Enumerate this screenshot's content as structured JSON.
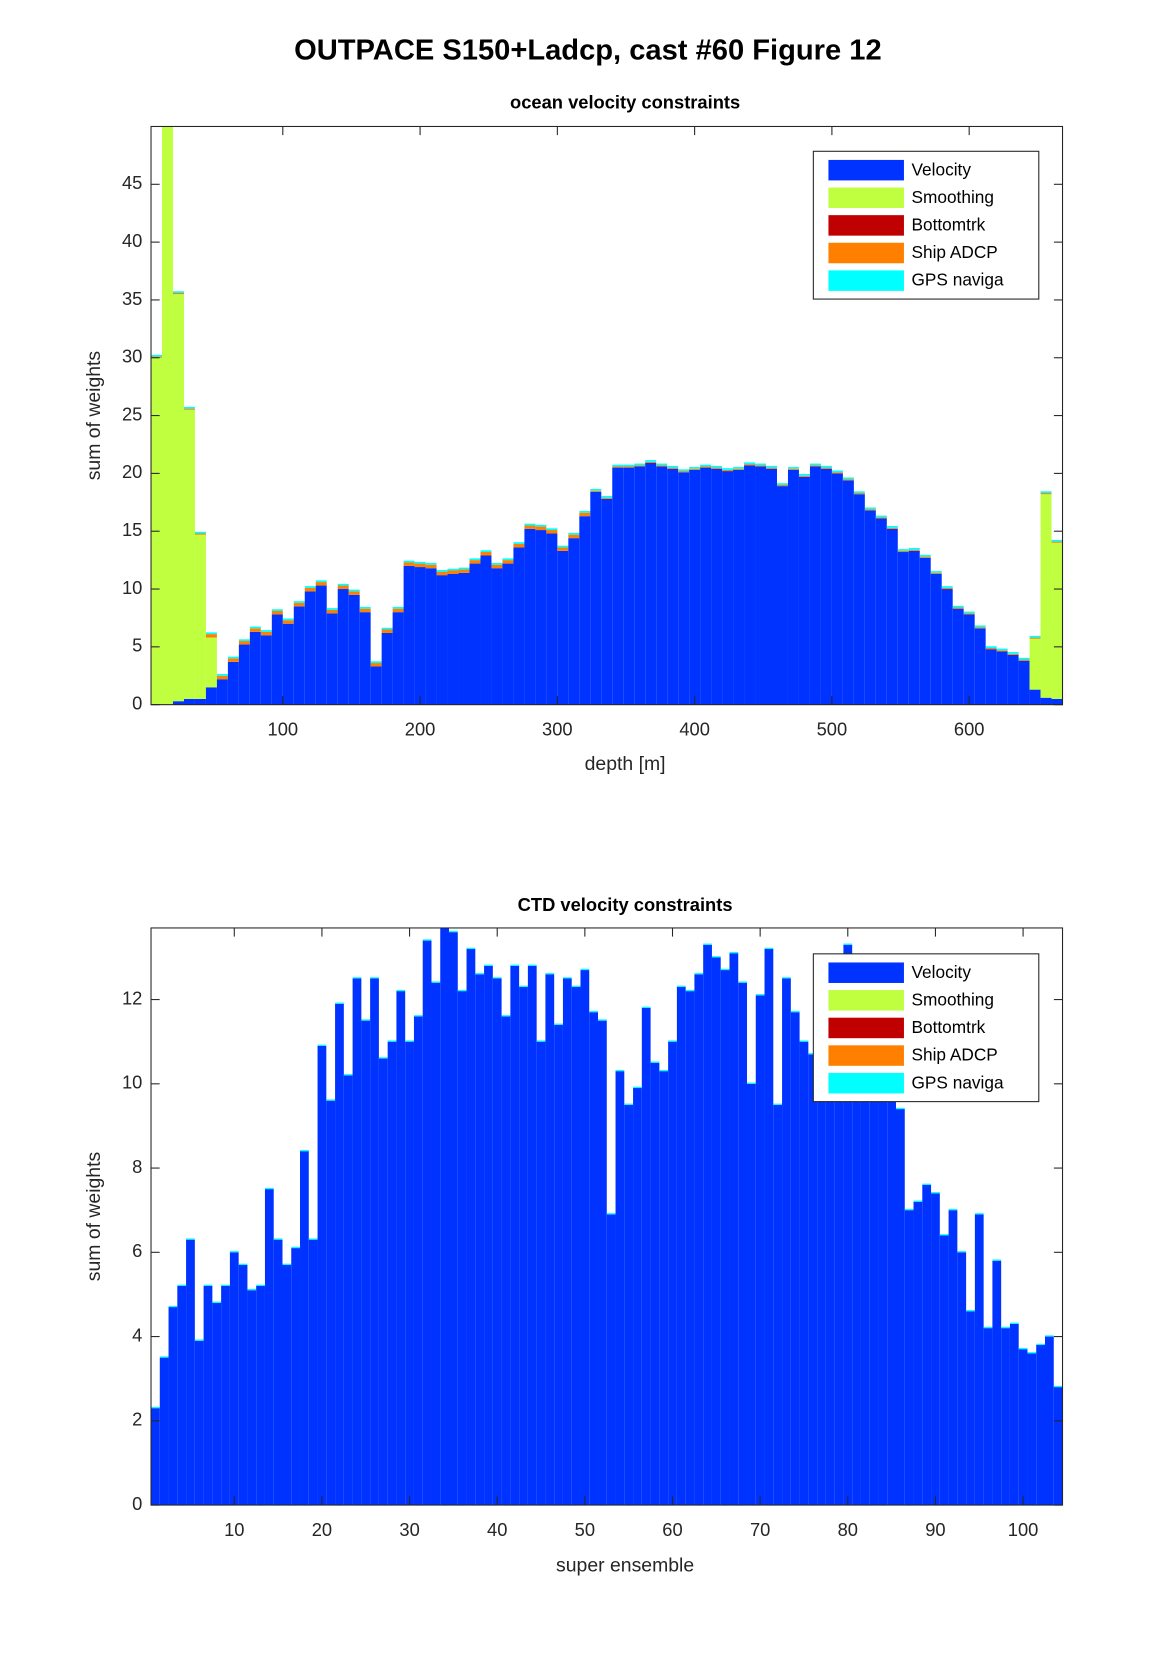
{
  "title": "OUTPACE S150+Ladcp, cast #60  Figure 12",
  "chart_data": [
    {
      "type": "bar",
      "stacked": true,
      "title": "ocean velocity constraints",
      "xlabel": "depth [m]",
      "ylabel": "sum of weights",
      "x": [
        8,
        16,
        24,
        32,
        40,
        48,
        56,
        64,
        72,
        80,
        88,
        96,
        104,
        112,
        120,
        128,
        136,
        144,
        152,
        160,
        168,
        176,
        184,
        192,
        200,
        208,
        216,
        224,
        232,
        240,
        248,
        256,
        264,
        272,
        280,
        288,
        296,
        304,
        312,
        320,
        328,
        336,
        344,
        352,
        360,
        368,
        376,
        384,
        392,
        400,
        408,
        416,
        424,
        432,
        440,
        448,
        456,
        464,
        472,
        480,
        488,
        496,
        504,
        512,
        520,
        528,
        536,
        544,
        552,
        560,
        568,
        576,
        584,
        592,
        600,
        608,
        616,
        624,
        632,
        640,
        648,
        656,
        664
      ],
      "series": [
        {
          "name": "Velocity",
          "color": "#0033ff",
          "values": [
            0,
            0,
            0.3,
            0.5,
            0.5,
            1.5,
            2.2,
            3.7,
            5.2,
            6.3,
            6.0,
            7.8,
            7.0,
            8.5,
            9.8,
            10.3,
            7.9,
            10.0,
            9.5,
            8.0,
            3.3,
            6.2,
            8.0,
            12.0,
            11.9,
            11.8,
            11.2,
            11.3,
            11.4,
            12.2,
            12.9,
            11.8,
            12.2,
            13.6,
            15.2,
            15.1,
            14.8,
            13.3,
            14.4,
            16.3,
            18.4,
            17.8,
            20.5,
            20.5,
            20.6,
            20.9,
            20.6,
            20.4,
            20.1,
            20.3,
            20.5,
            20.4,
            20.2,
            20.3,
            20.7,
            20.6,
            20.4,
            18.9,
            20.3,
            19.7,
            20.6,
            20.4,
            20.0,
            19.4,
            18.2,
            16.8,
            16.1,
            15.2,
            13.2,
            13.3,
            12.7,
            11.3,
            10.0,
            8.3,
            7.8,
            6.6,
            4.8,
            4.6,
            4.3,
            3.8,
            1.3,
            0.6,
            0.5
          ]
        },
        {
          "name": "Smoothing",
          "color": "#bfff40",
          "values": [
            30,
            50,
            35.2,
            25,
            14.2,
            4.3,
            0,
            0,
            0,
            0,
            0,
            0,
            0,
            0,
            0,
            0,
            0,
            0,
            0,
            0,
            0,
            0,
            0,
            0,
            0,
            0,
            0,
            0,
            0,
            0,
            0,
            0,
            0,
            0,
            0,
            0,
            0,
            0,
            0,
            0,
            0,
            0,
            0,
            0,
            0,
            0,
            0,
            0,
            0,
            0,
            0,
            0,
            0,
            0,
            0,
            0,
            0,
            0,
            0,
            0,
            0,
            0,
            0,
            0,
            0,
            0,
            0,
            0,
            0,
            0,
            0,
            0,
            0,
            0,
            0,
            0,
            0,
            0,
            0,
            0,
            4.4,
            17.6,
            13.5
          ]
        },
        {
          "name": "Bottomtrk",
          "color": "#c00000",
          "values": [
            0,
            0,
            0,
            0,
            0,
            0,
            0,
            0,
            0,
            0,
            0,
            0,
            0,
            0,
            0,
            0,
            0,
            0,
            0,
            0,
            0,
            0,
            0,
            0,
            0,
            0,
            0,
            0,
            0,
            0,
            0,
            0,
            0,
            0,
            0,
            0,
            0,
            0,
            0,
            0,
            0,
            0,
            0,
            0,
            0,
            0,
            0,
            0,
            0,
            0,
            0,
            0,
            0,
            0,
            0,
            0,
            0,
            0,
            0,
            0,
            0,
            0,
            0,
            0,
            0,
            0,
            0,
            0,
            0,
            0,
            0,
            0,
            0,
            0,
            0,
            0,
            0,
            0,
            0,
            0,
            0,
            0,
            0
          ]
        },
        {
          "name": "Ship ADCP",
          "color": "#ff8000",
          "values": [
            0.1,
            0.1,
            0.1,
            0.1,
            0.1,
            0.3,
            0.3,
            0.3,
            0.3,
            0.3,
            0.3,
            0.3,
            0.3,
            0.3,
            0.3,
            0.3,
            0.3,
            0.3,
            0.3,
            0.3,
            0.3,
            0.3,
            0.3,
            0.3,
            0.3,
            0.3,
            0.3,
            0.3,
            0.3,
            0.3,
            0.3,
            0.3,
            0.3,
            0.3,
            0.3,
            0.3,
            0.3,
            0.3,
            0.3,
            0.3,
            0.1,
            0.1,
            0.1,
            0.1,
            0.1,
            0.1,
            0.1,
            0.1,
            0.1,
            0.1,
            0.1,
            0.1,
            0.1,
            0.1,
            0.1,
            0.1,
            0.1,
            0.1,
            0.1,
            0.1,
            0.1,
            0.1,
            0.1,
            0.1,
            0.1,
            0.1,
            0.1,
            0.1,
            0.1,
            0.1,
            0.1,
            0.1,
            0.1,
            0.1,
            0.1,
            0.1,
            0.1,
            0.1,
            0.1,
            0.1,
            0.1,
            0.1,
            0.1
          ]
        },
        {
          "name": "GPS naviga",
          "color": "#00ffff",
          "values": [
            0.15,
            0.15,
            0.15,
            0.15,
            0.15,
            0.15,
            0.15,
            0.15,
            0.15,
            0.15,
            0.15,
            0.15,
            0.15,
            0.15,
            0.15,
            0.15,
            0.15,
            0.15,
            0.15,
            0.15,
            0.15,
            0.15,
            0.15,
            0.15,
            0.15,
            0.15,
            0.15,
            0.15,
            0.15,
            0.15,
            0.15,
            0.15,
            0.15,
            0.15,
            0.15,
            0.15,
            0.15,
            0.15,
            0.15,
            0.15,
            0.15,
            0.15,
            0.15,
            0.15,
            0.15,
            0.15,
            0.15,
            0.15,
            0.15,
            0.15,
            0.15,
            0.15,
            0.15,
            0.15,
            0.15,
            0.15,
            0.15,
            0.15,
            0.15,
            0.15,
            0.15,
            0.15,
            0.15,
            0.15,
            0.15,
            0.15,
            0.15,
            0.15,
            0.15,
            0.15,
            0.15,
            0.15,
            0.15,
            0.15,
            0.15,
            0.15,
            0.15,
            0.15,
            0.15,
            0.15,
            0.15,
            0.15,
            0.15
          ]
        }
      ],
      "xlim": [
        4,
        668
      ],
      "ylim": [
        0,
        50
      ],
      "xticks": [
        100,
        200,
        300,
        400,
        500,
        600
      ],
      "yticks": [
        0,
        5,
        10,
        15,
        20,
        25,
        30,
        35,
        40,
        45
      ],
      "legend": "upper right"
    },
    {
      "type": "bar",
      "stacked": true,
      "title": "CTD velocity constraints",
      "xlabel": "super ensemble",
      "ylabel": "sum of weights",
      "x": [
        1,
        2,
        3,
        4,
        5,
        6,
        7,
        8,
        9,
        10,
        11,
        12,
        13,
        14,
        15,
        16,
        17,
        18,
        19,
        20,
        21,
        22,
        23,
        24,
        25,
        26,
        27,
        28,
        29,
        30,
        31,
        32,
        33,
        34,
        35,
        36,
        37,
        38,
        39,
        40,
        41,
        42,
        43,
        44,
        45,
        46,
        47,
        48,
        49,
        50,
        51,
        52,
        53,
        54,
        55,
        56,
        57,
        58,
        59,
        60,
        61,
        62,
        63,
        64,
        65,
        66,
        67,
        68,
        69,
        70,
        71,
        72,
        73,
        74,
        75,
        76,
        77,
        78,
        79,
        80,
        81,
        82,
        83,
        84,
        85,
        86,
        87,
        88,
        89,
        90,
        91,
        92,
        93,
        94,
        95,
        96,
        97,
        98,
        99,
        100,
        101,
        102,
        103,
        104
      ],
      "series": [
        {
          "name": "Velocity",
          "color": "#0033ff",
          "values": [
            2.3,
            3.5,
            4.7,
            5.2,
            6.3,
            3.9,
            5.2,
            4.8,
            5.2,
            6.0,
            5.7,
            5.1,
            5.2,
            7.5,
            6.3,
            5.7,
            6.1,
            8.4,
            6.3,
            10.9,
            9.6,
            11.9,
            10.2,
            12.5,
            11.5,
            12.5,
            10.6,
            11.0,
            12.2,
            11.0,
            11.6,
            13.4,
            12.4,
            13.7,
            13.6,
            12.2,
            13.2,
            12.6,
            12.8,
            12.5,
            11.6,
            12.8,
            12.3,
            12.8,
            11.0,
            12.6,
            11.4,
            12.5,
            12.3,
            12.7,
            11.7,
            11.5,
            6.9,
            10.3,
            9.5,
            9.9,
            11.8,
            10.5,
            10.3,
            11.0,
            12.3,
            12.2,
            12.6,
            13.3,
            13.0,
            12.7,
            13.1,
            12.4,
            10.0,
            12.1,
            13.2,
            9.5,
            12.5,
            11.7,
            11.0,
            10.7,
            12.4,
            10.6,
            12.1,
            13.3,
            12.5,
            11.0,
            10.0,
            9.7,
            10.2,
            9.4,
            7.0,
            7.2,
            7.6,
            7.4,
            6.4,
            7.0,
            6.0,
            4.6,
            6.9,
            4.2,
            5.8,
            4.2,
            4.3,
            3.7,
            3.6,
            3.8,
            4.0,
            2.8
          ]
        },
        {
          "name": "Smoothing",
          "color": "#bfff40",
          "values": [
            0,
            0,
            0,
            0,
            0,
            0,
            0,
            0,
            0,
            0,
            0,
            0,
            0,
            0,
            0,
            0,
            0,
            0,
            0,
            0,
            0,
            0,
            0,
            0,
            0,
            0,
            0,
            0,
            0,
            0,
            0,
            0,
            0,
            0,
            0,
            0,
            0,
            0,
            0,
            0,
            0,
            0,
            0,
            0,
            0,
            0,
            0,
            0,
            0,
            0,
            0,
            0,
            0,
            0,
            0,
            0,
            0,
            0,
            0,
            0,
            0,
            0,
            0,
            0,
            0,
            0,
            0,
            0,
            0,
            0,
            0,
            0,
            0,
            0,
            0,
            0,
            0,
            0,
            0,
            0,
            0,
            0,
            0,
            0,
            0,
            0,
            0,
            0,
            0,
            0,
            0,
            0,
            0,
            0,
            0,
            0,
            0,
            0,
            0,
            0,
            0,
            0,
            0,
            0
          ]
        },
        {
          "name": "Bottomtrk",
          "color": "#c00000",
          "values": [
            0,
            0,
            0,
            0,
            0,
            0,
            0,
            0,
            0,
            0,
            0,
            0,
            0,
            0,
            0,
            0,
            0,
            0,
            0,
            0,
            0,
            0,
            0,
            0,
            0,
            0,
            0,
            0,
            0,
            0,
            0,
            0,
            0,
            0,
            0,
            0,
            0,
            0,
            0,
            0,
            0,
            0,
            0,
            0,
            0,
            0,
            0,
            0,
            0,
            0,
            0,
            0,
            0,
            0,
            0,
            0,
            0,
            0,
            0,
            0,
            0,
            0,
            0,
            0,
            0,
            0,
            0,
            0,
            0,
            0,
            0,
            0,
            0,
            0,
            0,
            0,
            0,
            0,
            0,
            0,
            0,
            0,
            0,
            0,
            0,
            0,
            0,
            0,
            0,
            0,
            0,
            0,
            0,
            0,
            0,
            0,
            0,
            0,
            0,
            0,
            0,
            0,
            0,
            0
          ]
        },
        {
          "name": "Ship ADCP",
          "color": "#ff8000",
          "values": [
            0,
            0,
            0,
            0,
            0,
            0,
            0,
            0,
            0,
            0,
            0,
            0,
            0,
            0,
            0,
            0,
            0,
            0,
            0,
            0,
            0,
            0,
            0,
            0,
            0,
            0,
            0,
            0,
            0,
            0,
            0,
            0,
            0,
            0,
            0,
            0,
            0,
            0,
            0,
            0,
            0,
            0,
            0,
            0,
            0,
            0,
            0,
            0,
            0,
            0,
            0,
            0,
            0,
            0,
            0,
            0,
            0,
            0,
            0,
            0,
            0,
            0,
            0,
            0,
            0,
            0,
            0,
            0,
            0,
            0,
            0,
            0,
            0,
            0,
            0,
            0,
            0,
            0,
            0,
            0,
            0,
            0,
            0,
            0,
            0,
            0,
            0,
            0,
            0,
            0,
            0,
            0,
            0,
            0,
            0,
            0,
            0,
            0,
            0,
            0,
            0,
            0,
            0,
            0
          ]
        },
        {
          "name": "GPS naviga",
          "color": "#00ffff",
          "values": [
            0.03,
            0.03,
            0.03,
            0.03,
            0.03,
            0.03,
            0.03,
            0.03,
            0.03,
            0.03,
            0.03,
            0.03,
            0.03,
            0.03,
            0.03,
            0.03,
            0.03,
            0.03,
            0.03,
            0.03,
            0.03,
            0.03,
            0.03,
            0.03,
            0.03,
            0.03,
            0.03,
            0.03,
            0.03,
            0.03,
            0.03,
            0.03,
            0.03,
            0.03,
            0.03,
            0.03,
            0.03,
            0.03,
            0.03,
            0.03,
            0.03,
            0.03,
            0.03,
            0.03,
            0.03,
            0.03,
            0.03,
            0.03,
            0.03,
            0.03,
            0.03,
            0.03,
            0.03,
            0.03,
            0.03,
            0.03,
            0.03,
            0.03,
            0.03,
            0.03,
            0.03,
            0.03,
            0.03,
            0.03,
            0.03,
            0.03,
            0.03,
            0.03,
            0.03,
            0.03,
            0.03,
            0.03,
            0.03,
            0.03,
            0.03,
            0.03,
            0.03,
            0.03,
            0.03,
            0.03,
            0.03,
            0.03,
            0.03,
            0.03,
            0.03,
            0.03,
            0.03,
            0.03,
            0.03,
            0.03,
            0.03,
            0.03,
            0.03,
            0.03,
            0.03,
            0.03,
            0.03,
            0.03,
            0.03,
            0.03,
            0.03,
            0.03,
            0.03,
            0.03
          ]
        }
      ],
      "xlim": [
        0.5,
        104.5
      ],
      "ylim": [
        0,
        13.7
      ],
      "xticks": [
        10,
        20,
        30,
        40,
        50,
        60,
        70,
        80,
        90,
        100
      ],
      "yticks": [
        0,
        2,
        4,
        6,
        8,
        10,
        12
      ],
      "legend": "upper right"
    }
  ]
}
